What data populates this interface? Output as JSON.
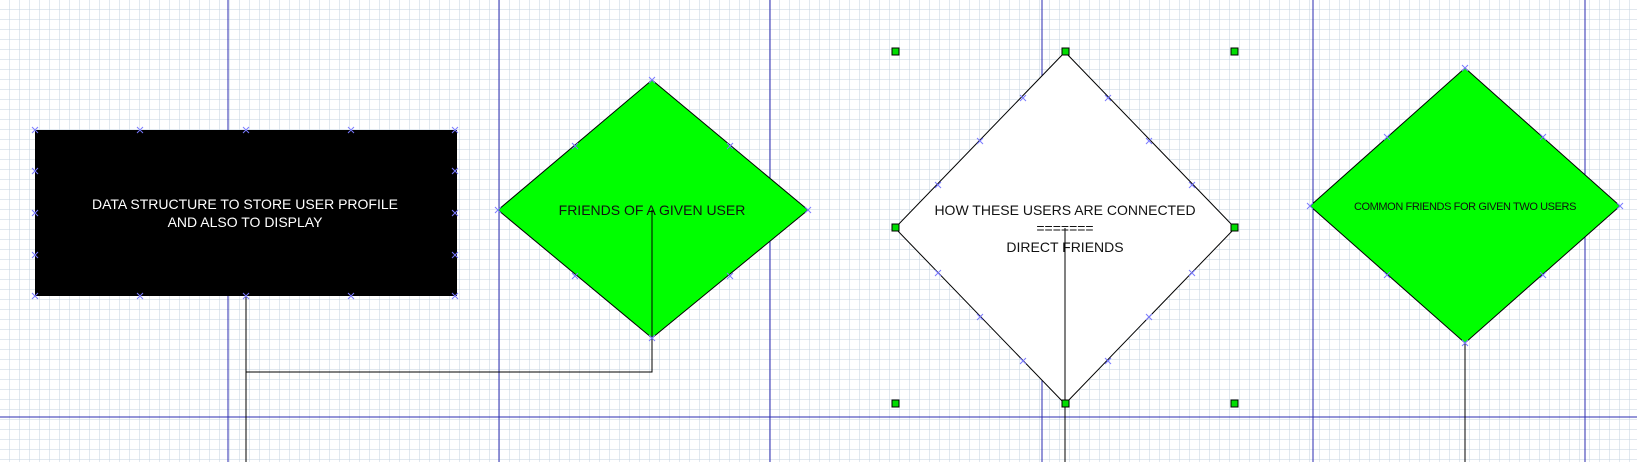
{
  "colors": {
    "page_guide": "#2b2bb0",
    "grid": "#c8d6e2",
    "rect_fill": "#000000",
    "rect_text": "#ffffff",
    "diamond_fill": "#00ff00",
    "selected_fill": "#ffffff",
    "connector": "#000000",
    "handle_fill": "#00dd00",
    "connection_point": "#7a7aff"
  },
  "shapes": {
    "data_structure": {
      "line1": "DATA STRUCTURE TO STORE USER PROFILE",
      "line2": "AND ALSO TO DISPLAY"
    },
    "friends_of_user": {
      "label": "FRIENDS OF A GIVEN USER"
    },
    "how_connected": {
      "line1": "HOW THESE USERS ARE CONNECTED",
      "line2": "=======",
      "line3": "DIRECT FRIENDS",
      "selected": true
    },
    "common_friends": {
      "label": "COMMON FRIENDS FOR GIVEN TWO USERS"
    }
  }
}
